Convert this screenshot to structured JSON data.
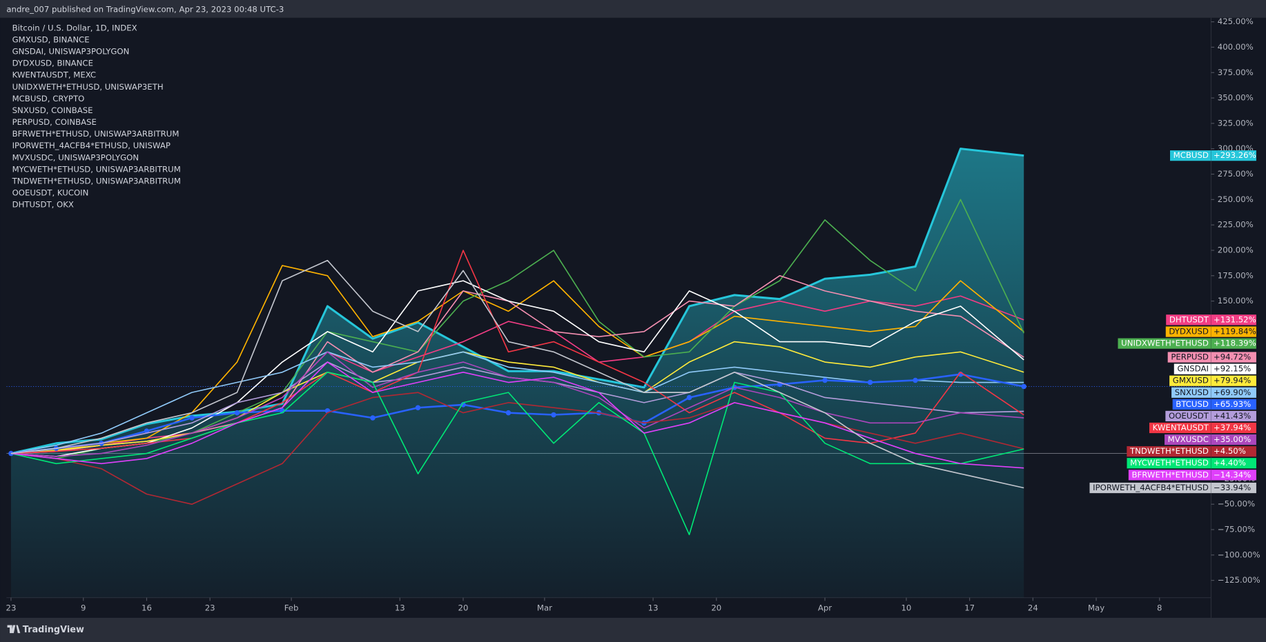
{
  "chart_data": {
    "type": "line",
    "header": "andre_007 published on TradingView.com, Apr 23, 2023 00:48 UTC-3",
    "brand": "TradingView",
    "legend": [
      "Bitcoin / U.S. Dollar, 1D, INDEX",
      "GMXUSD, BINANCE",
      "GNSDAI, UNISWAP3POLYGON",
      "DYDXUSD, BINANCE",
      "KWENTAUSDT, MEXC",
      "UNIDXWETH*ETHUSD, UNISWAP3ETH",
      "MCBUSD, CRYPTO",
      "SNXUSD, COINBASE",
      "PERPUSD, COINBASE",
      "BFRWETH*ETHUSD, UNISWAP3ARBITRUM",
      "IPORWETH_4ACFB4*ETHUSD, UNISWAP",
      "MVXUSDC, UNISWAP3POLYGON",
      "MYCWETH*ETHUSD, UNISWAP3ARBITRUM",
      "TNDWETH*ETHUSD, UNISWAP3ARBITRUM",
      "OOEUSDT, KUCOIN",
      "DHTUSDT, OKX"
    ],
    "x": [
      1,
      6,
      11,
      16,
      21,
      26,
      31,
      36,
      41,
      46,
      51,
      56,
      61,
      66,
      71,
      76,
      81,
      86,
      91,
      96,
      101,
      106,
      113
    ],
    "xlim": [
      0.5,
      133.7
    ],
    "xticks": [
      {
        "value": 1,
        "label": "23"
      },
      {
        "value": 9,
        "label": "9"
      },
      {
        "value": 16,
        "label": "16"
      },
      {
        "value": 23,
        "label": "23"
      },
      {
        "value": 32,
        "label": "Feb"
      },
      {
        "value": 44,
        "label": "13"
      },
      {
        "value": 51,
        "label": "20"
      },
      {
        "value": 60,
        "label": "Mar"
      },
      {
        "value": 72,
        "label": "13"
      },
      {
        "value": 79,
        "label": "20"
      },
      {
        "value": 91,
        "label": "Apr"
      },
      {
        "value": 100,
        "label": "10"
      },
      {
        "value": 107,
        "label": "17"
      },
      {
        "value": 114,
        "label": "24"
      },
      {
        "value": 121,
        "label": "May"
      },
      {
        "value": 128,
        "label": "8"
      }
    ],
    "ylim": [
      -142,
      429
    ],
    "yticks": [
      {
        "value": -125,
        "label": "−125.00%"
      },
      {
        "value": -100,
        "label": "−100.00%"
      },
      {
        "value": -75,
        "label": "−75.00%"
      },
      {
        "value": -50,
        "label": "−50.00%"
      },
      {
        "value": -25,
        "label": "−25.00%"
      },
      {
        "value": 50,
        "label": "50.00%"
      },
      {
        "value": 150,
        "label": "150.00%"
      },
      {
        "value": 175,
        "label": "175.00%"
      },
      {
        "value": 200,
        "label": "200.00%"
      },
      {
        "value": 225,
        "label": "225.00%"
      },
      {
        "value": 250,
        "label": "250.00%"
      },
      {
        "value": 275,
        "label": "275.00%"
      },
      {
        "value": 300,
        "label": "300.00%"
      },
      {
        "value": 325,
        "label": "325.00%"
      },
      {
        "value": 350,
        "label": "350.00%"
      },
      {
        "value": 375,
        "label": "375.00%"
      },
      {
        "value": 400,
        "label": "400.00%"
      },
      {
        "value": 425,
        "label": "425.00%"
      }
    ],
    "series": [
      {
        "name": "MCBUSD",
        "color": "#26c6da",
        "area": true,
        "values": [
          0,
          10,
          14,
          29,
          37,
          41,
          49,
          145,
          113,
          129,
          105,
          81,
          81,
          73,
          65,
          145,
          156,
          152,
          172,
          176,
          184,
          300,
          293.26
        ],
        "value_label": "+293.26%"
      },
      {
        "name": "DHTUSDT",
        "color": "#f23d84",
        "values": [
          0,
          2,
          8,
          15,
          20,
          35,
          55,
          100,
          80,
          95,
          110,
          130,
          120,
          90,
          95,
          110,
          140,
          150,
          140,
          150,
          145,
          155,
          131.52
        ],
        "value_label": "+131.52%"
      },
      {
        "name": "DYDXUSD",
        "color": "#ffb300",
        "values": [
          0,
          3,
          10,
          15,
          40,
          90,
          185,
          175,
          115,
          130,
          160,
          140,
          170,
          125,
          95,
          110,
          135,
          130,
          125,
          120,
          125,
          170,
          119.84
        ],
        "value_label": "+119.84%"
      },
      {
        "name": "UNIDXWETH*ETHUSD",
        "color": "#4caf50",
        "values": [
          0,
          -5,
          5,
          10,
          20,
          40,
          60,
          120,
          110,
          100,
          150,
          170,
          200,
          130,
          95,
          100,
          145,
          170,
          230,
          190,
          160,
          250,
          118.39
        ],
        "value_label": "+118.39%"
      },
      {
        "name": "PERPUSD",
        "color": "#f48fb1",
        "values": [
          0,
          2,
          8,
          12,
          20,
          30,
          45,
          110,
          80,
          100,
          160,
          150,
          120,
          115,
          120,
          150,
          145,
          175,
          160,
          150,
          140,
          135,
          94.72
        ],
        "value_label": "+94.72%"
      },
      {
        "name": "GNSDAI",
        "color": "#ffffff",
        "values": [
          0,
          -3,
          5,
          10,
          25,
          50,
          90,
          120,
          100,
          160,
          170,
          150,
          140,
          110,
          100,
          160,
          140,
          110,
          110,
          105,
          130,
          145,
          92.15
        ],
        "value_label": "+92.15%"
      },
      {
        "name": "GMXUSD",
        "color": "#ffeb3b",
        "values": [
          0,
          3,
          8,
          12,
          20,
          35,
          60,
          80,
          70,
          90,
          100,
          90,
          85,
          70,
          60,
          90,
          110,
          105,
          90,
          85,
          95,
          100,
          79.94
        ],
        "value_label": "+79.94%"
      },
      {
        "name": "SNXUSD",
        "color": "#90caf9",
        "values": [
          0,
          8,
          20,
          40,
          60,
          70,
          80,
          100,
          85,
          90,
          100,
          85,
          80,
          70,
          60,
          80,
          85,
          80,
          75,
          70,
          72,
          70,
          69.9
        ],
        "value_label": "+69.90%"
      },
      {
        "name": "BTCUSD",
        "color": "#2962ff",
        "markers": true,
        "values": [
          0,
          5,
          10,
          22,
          35,
          40,
          42,
          42,
          35,
          45,
          48,
          40,
          38,
          40,
          30,
          55,
          65,
          68,
          72,
          70,
          72,
          78,
          65.93
        ],
        "value_label": "+65.93%"
      },
      {
        "name": "OOEUSDT",
        "color": "#b39ddb",
        "values": [
          0,
          5,
          10,
          20,
          30,
          50,
          60,
          90,
          70,
          75,
          85,
          75,
          70,
          60,
          50,
          60,
          80,
          70,
          55,
          50,
          45,
          40,
          41.43
        ],
        "value_label": "+41.43%"
      },
      {
        "name": "KWENTAUSDT",
        "color": "#f23645",
        "values": [
          0,
          2,
          5,
          10,
          15,
          30,
          50,
          80,
          60,
          80,
          200,
          100,
          110,
          90,
          70,
          40,
          60,
          40,
          15,
          10,
          20,
          80,
          37.94
        ],
        "value_label": "+37.94%"
      },
      {
        "name": "MVXUSDC",
        "color": "#ab47bc",
        "values": [
          0,
          -3,
          0,
          8,
          20,
          35,
          55,
          100,
          65,
          80,
          90,
          75,
          70,
          55,
          25,
          45,
          65,
          55,
          40,
          30,
          30,
          40,
          35
        ],
        "value_label": "+35.00%"
      },
      {
        "name": "TNDWETH*ETHUSD",
        "color": "#b22833",
        "values": [
          0,
          -5,
          -15,
          -40,
          -50,
          -30,
          -10,
          40,
          55,
          60,
          40,
          50,
          45,
          40,
          30,
          35,
          50,
          40,
          30,
          20,
          10,
          20,
          4.5
        ],
        "value_label": "+4.50%"
      },
      {
        "name": "MYCWETH*ETHUSD",
        "color": "#00e676",
        "values": [
          0,
          -10,
          -5,
          0,
          15,
          30,
          40,
          80,
          70,
          -20,
          50,
          60,
          10,
          50,
          20,
          -80,
          70,
          60,
          10,
          -10,
          -10,
          -10,
          4.4
        ],
        "value_label": "+4.40%"
      },
      {
        "name": "BFRWETH*ETHUSD",
        "color": "#e040fb",
        "values": [
          0,
          -5,
          -10,
          -5,
          10,
          30,
          45,
          90,
          60,
          70,
          80,
          70,
          75,
          60,
          20,
          30,
          50,
          40,
          30,
          15,
          0,
          -10,
          -14.34
        ],
        "value_label": "−14.34%"
      },
      {
        "name": "IPORWETH_4ACFB4*ETHUSD",
        "color": "#c3c6ce",
        "values": [
          0,
          5,
          15,
          30,
          40,
          60,
          170,
          190,
          140,
          120,
          180,
          110,
          100,
          80,
          60,
          60,
          80,
          60,
          40,
          10,
          -10,
          -20,
          -33.94
        ],
        "value_label": "−33.94%"
      }
    ]
  }
}
